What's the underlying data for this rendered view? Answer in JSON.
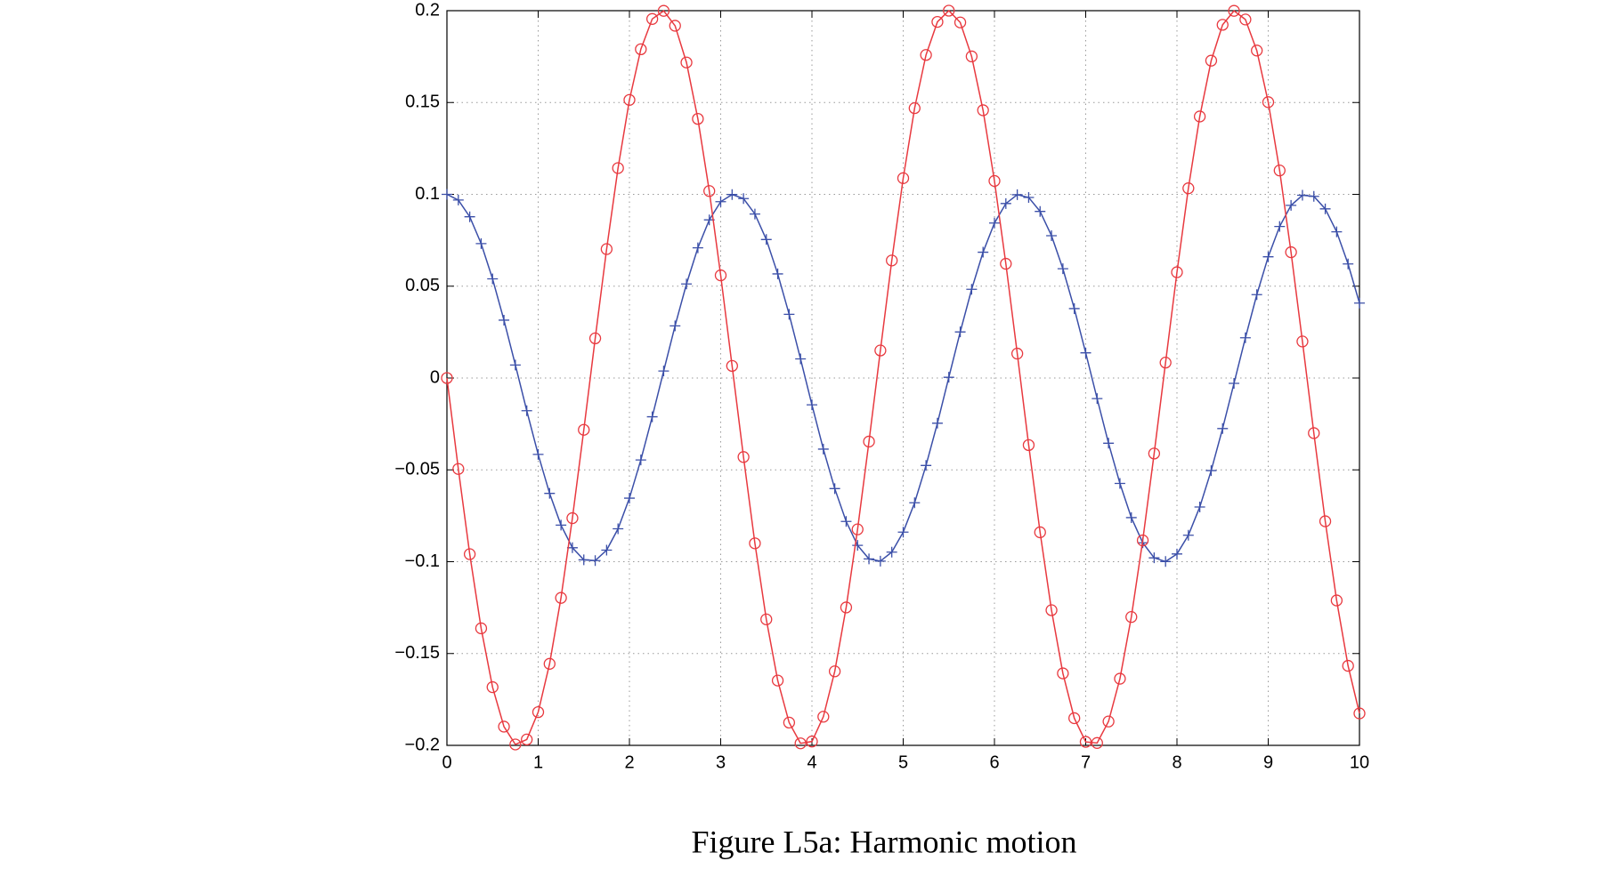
{
  "chart_data": {
    "type": "line",
    "caption": "Figure L5a: Harmonic motion",
    "x": [
      0,
      0.125,
      0.25,
      0.375,
      0.5,
      0.625,
      0.75,
      0.875,
      1,
      1.125,
      1.25,
      1.375,
      1.5,
      1.625,
      1.75,
      1.875,
      2,
      2.125,
      2.25,
      2.375,
      2.5,
      2.625,
      2.75,
      2.875,
      3,
      3.125,
      3.25,
      3.375,
      3.5,
      3.625,
      3.75,
      3.875,
      4,
      4.125,
      4.25,
      4.375,
      4.5,
      4.625,
      4.75,
      4.875,
      5,
      5.125,
      5.25,
      5.375,
      5.5,
      5.625,
      5.75,
      5.875,
      6,
      6.125,
      6.25,
      6.375,
      6.5,
      6.625,
      6.75,
      6.875,
      7,
      7.125,
      7.25,
      7.375,
      7.5,
      7.625,
      7.75,
      7.875,
      8,
      8.125,
      8.25,
      8.375,
      8.5,
      8.625,
      8.75,
      8.875,
      9,
      9.125,
      9.25,
      9.375,
      9.5,
      9.625,
      9.75,
      9.875,
      10
    ],
    "series": [
      {
        "color": "#3b4fa8",
        "marker": "plus",
        "values": [
          0.1,
          0.0969,
          0.0878,
          0.0732,
          0.054,
          0.0315,
          0.0071,
          -0.0178,
          -0.0416,
          -0.0628,
          -0.0801,
          -0.0924,
          -0.099,
          -0.0994,
          -0.0937,
          -0.0821,
          -0.0654,
          -0.0446,
          -0.0211,
          0.0038,
          0.0284,
          0.0512,
          0.0709,
          0.0861,
          0.096,
          0.0999,
          0.0977,
          0.0893,
          0.0754,
          0.0567,
          0.0347,
          0.0104,
          -0.0146,
          -0.0387,
          -0.0602,
          -0.0781,
          -0.0911,
          -0.0985,
          -0.0997,
          -0.0948,
          -0.0839,
          -0.0679,
          -0.0476,
          -0.0246,
          0.0004,
          0.0251,
          0.0483,
          0.0685,
          0.0844,
          0.095,
          0.0998,
          0.0983,
          0.0907,
          0.0775,
          0.0595,
          0.0378,
          0.0137,
          -0.0112,
          -0.0355,
          -0.0574,
          -0.076,
          -0.0897,
          -0.0979,
          -0.0999,
          -0.0958,
          -0.0856,
          -0.0702,
          -0.0504,
          -0.0275,
          -0.0029,
          0.0219,
          0.0454,
          0.066,
          0.0825,
          0.094,
          0.0995,
          0.0989,
          0.0921,
          0.0796,
          0.0621,
          0.0408
        ]
      },
      {
        "color": "#e8393f",
        "marker": "circle",
        "values": [
          0,
          -0.0495,
          -0.0959,
          -0.1363,
          -0.1683,
          -0.1898,
          -0.1995,
          -0.1968,
          -0.1819,
          -0.1556,
          -0.1197,
          -0.0763,
          -0.0282,
          0.0216,
          0.0702,
          0.1143,
          0.1514,
          0.179,
          0.1955,
          0.1999,
          0.1918,
          0.1718,
          0.1411,
          0.1018,
          0.0559,
          0.0066,
          -0.043,
          -0.09,
          -0.1314,
          -0.1647,
          -0.1876,
          -0.1989,
          -0.1979,
          -0.1844,
          -0.1597,
          -0.1249,
          -0.0824,
          -0.0346,
          0.015,
          0.064,
          0.1088,
          0.1469,
          0.1759,
          0.1939,
          0.2,
          0.1936,
          0.1751,
          0.1458,
          0.1073,
          0.0622,
          0.0133,
          -0.0365,
          -0.084,
          -0.1264,
          -0.1608,
          -0.1852,
          -0.1981,
          -0.1987,
          -0.187,
          -0.1637,
          -0.1301,
          -0.0884,
          -0.0411,
          0.0084,
          0.0576,
          0.1033,
          0.1424,
          0.1728,
          0.1923,
          0.1999,
          0.1952,
          0.1783,
          0.1502,
          0.113,
          0.0685,
          0.0199,
          -0.03,
          -0.078,
          -0.1211,
          -0.1567,
          -0.1826
        ]
      }
    ],
    "xlim": [
      0,
      10
    ],
    "xticks": [
      0,
      1,
      2,
      3,
      4,
      5,
      6,
      7,
      8,
      9,
      10
    ],
    "ylim": [
      -0.2,
      0.2
    ],
    "yticks": [
      {
        "value": -0.2,
        "label": "−0.2"
      },
      {
        "value": -0.15,
        "label": "−0.15"
      },
      {
        "value": -0.1,
        "label": "−0.1"
      },
      {
        "value": -0.05,
        "label": "−0.05"
      },
      0,
      0.05,
      0.1,
      0.15,
      0.2
    ],
    "grid": true
  }
}
